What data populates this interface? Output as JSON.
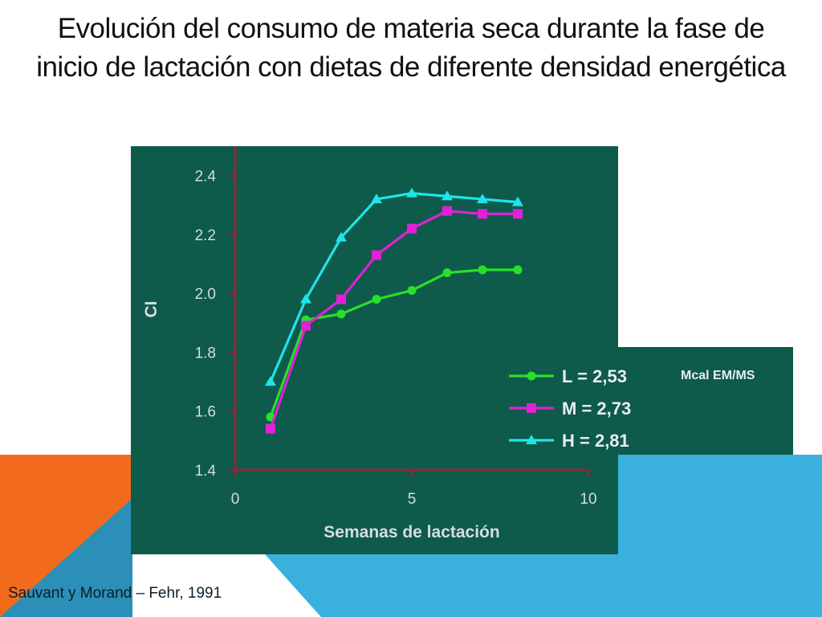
{
  "slide": {
    "title": "Evolución del consumo de materia seca durante la fase de inicio de lactación con dietas de diferente densidad energética",
    "source": "Sauvant y Morand – Fehr, 1991"
  },
  "colors": {
    "panel": "#0e5a4b",
    "axis": "#8a2a3a",
    "orange": "#f26b1d",
    "blue": "#3ab0dc",
    "blue_dark": "#2c8fb8"
  },
  "chart_data": {
    "type": "line",
    "title": "",
    "xlabel": "Semanas de lactación",
    "ylabel": "CI",
    "xlim": [
      0,
      10
    ],
    "ylim": [
      1.4,
      2.5
    ],
    "xticks": [
      "0",
      "5",
      "10"
    ],
    "yticks": [
      "1.4",
      "1.6",
      "1.8",
      "2.0",
      "2.2",
      "2.4"
    ],
    "x": [
      1,
      2,
      3,
      4,
      5,
      6,
      7,
      8
    ],
    "legend_units": "Mcal EM/MS",
    "series": [
      {
        "name": "L = 2,53",
        "color": "#28e02a",
        "marker": "circle",
        "values": [
          1.58,
          1.91,
          1.93,
          1.98,
          2.01,
          2.07,
          2.08,
          2.08
        ]
      },
      {
        "name": "M = 2,73",
        "color": "#e021d6",
        "marker": "square",
        "values": [
          1.54,
          1.89,
          1.98,
          2.13,
          2.22,
          2.28,
          2.27,
          2.27
        ]
      },
      {
        "name": "H = 2,81",
        "color": "#1fe4e8",
        "marker": "triangle",
        "values": [
          1.7,
          1.98,
          2.19,
          2.32,
          2.34,
          2.33,
          2.32,
          2.31
        ]
      }
    ]
  }
}
